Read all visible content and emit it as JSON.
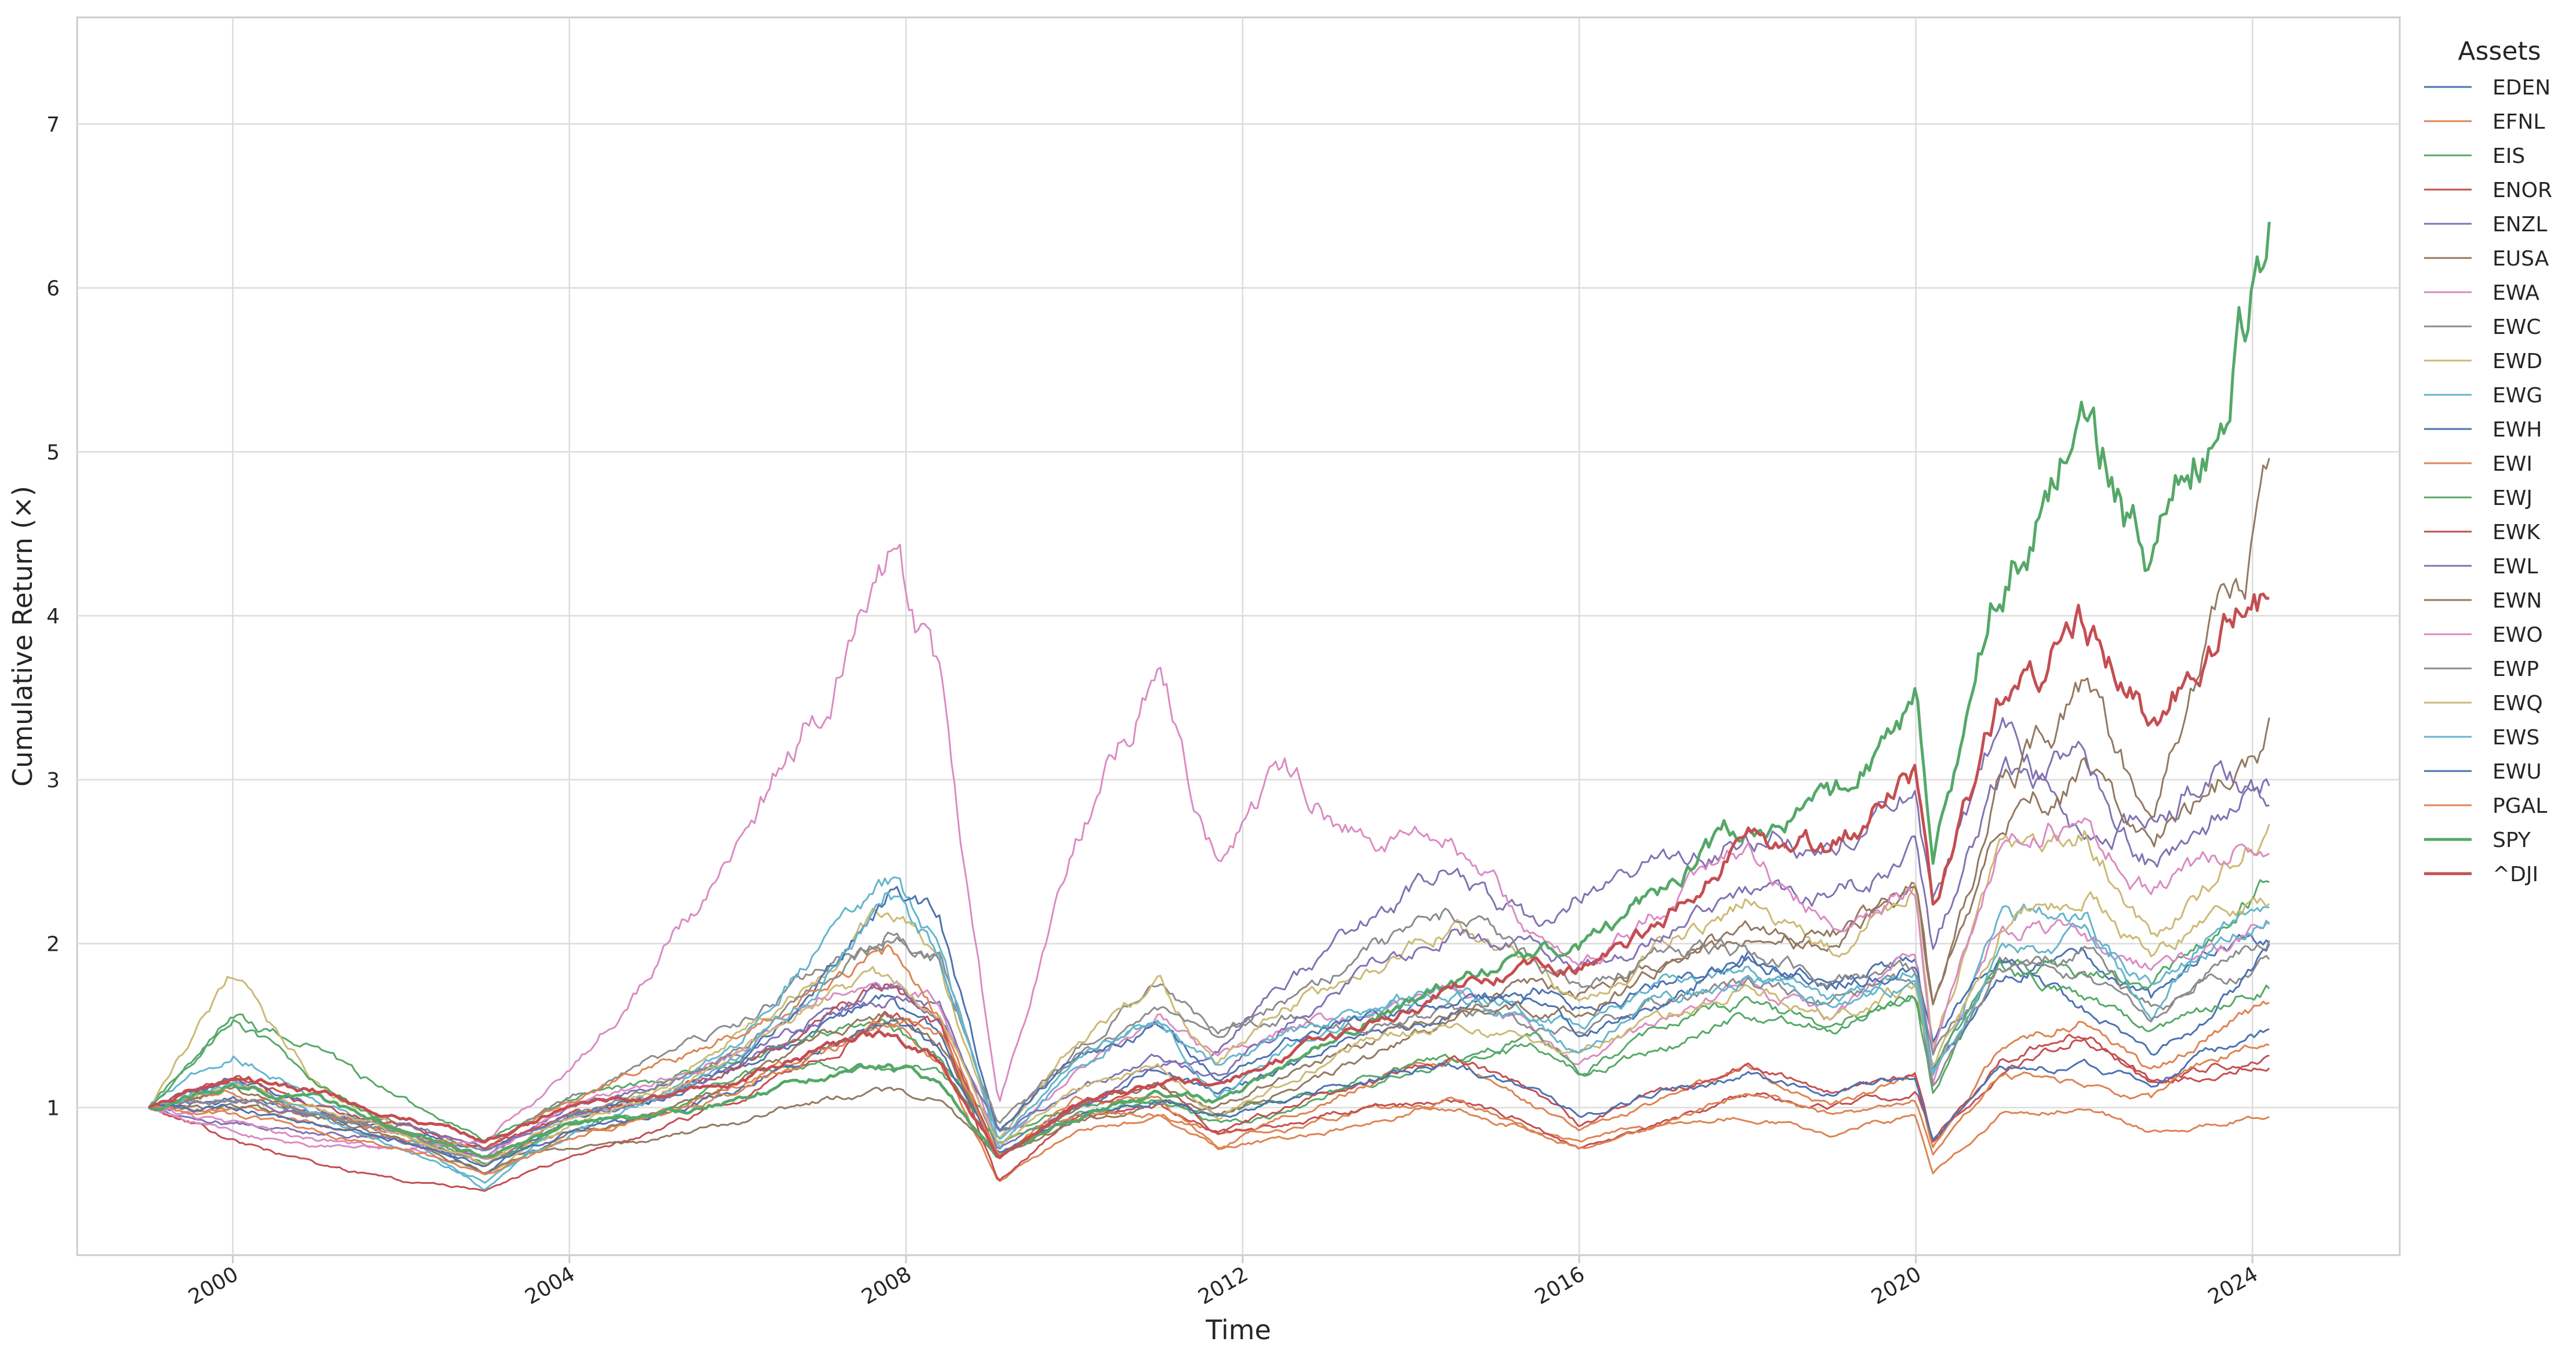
{
  "chart_data": {
    "type": "line",
    "title": "",
    "xlabel": "Time",
    "ylabel": "Cumulative Return (×)",
    "x_ticks": [
      "2000",
      "2004",
      "2008",
      "2012",
      "2016",
      "2020",
      "2024"
    ],
    "y_ticks": [
      "1",
      "2",
      "3",
      "4",
      "5",
      "6",
      "7"
    ],
    "xlim": [
      1998.15,
      2025.75
    ],
    "ylim": [
      0.1,
      7.65
    ],
    "grid": true,
    "legend": {
      "title": "Assets",
      "placement": "right-outside"
    },
    "anchor_years": [
      1999.0,
      2000.0,
      2001.0,
      2002.0,
      2003.0,
      2004.0,
      2005.0,
      2006.0,
      2007.0,
      2007.8,
      2008.4,
      2009.1,
      2010.0,
      2011.0,
      2011.7,
      2012.5,
      2013.5,
      2014.5,
      2015.5,
      2016.0,
      2017.0,
      2018.0,
      2019.0,
      2020.0,
      2020.2,
      2021.0,
      2022.0,
      2022.8,
      2023.5,
      2024.2
    ],
    "series": [
      {
        "name": "EDEN",
        "color": "#4c72b0",
        "width": 3,
        "values": [
          1.0,
          1.05,
          0.95,
          0.85,
          0.75,
          0.95,
          1.05,
          1.25,
          1.5,
          1.65,
          1.45,
          0.7,
          1.0,
          1.25,
          1.1,
          1.25,
          1.45,
          1.55,
          1.75,
          1.6,
          1.75,
          1.9,
          1.75,
          1.95,
          1.25,
          1.75,
          1.95,
          1.65,
          1.95,
          2.05
        ]
      },
      {
        "name": "EFNL",
        "color": "#dd8452",
        "width": 3,
        "values": [
          1.0,
          1.0,
          0.9,
          0.8,
          0.7,
          0.85,
          0.95,
          1.15,
          1.35,
          1.5,
          1.3,
          0.55,
          0.85,
          0.95,
          0.85,
          0.85,
          1.0,
          1.0,
          0.85,
          0.8,
          0.9,
          0.95,
          0.85,
          0.95,
          0.6,
          0.95,
          1.0,
          0.85,
          0.9,
          0.95
        ]
      },
      {
        "name": "EIS",
        "color": "#55a868",
        "width": 3,
        "values": [
          1.0,
          1.55,
          1.35,
          1.05,
          0.8,
          1.05,
          1.15,
          1.3,
          1.45,
          1.5,
          1.3,
          0.85,
          1.0,
          1.05,
          0.95,
          1.05,
          1.15,
          1.3,
          1.35,
          1.2,
          1.35,
          1.55,
          1.5,
          1.7,
          1.1,
          1.9,
          1.8,
          1.75,
          2.05,
          2.4
        ]
      },
      {
        "name": "ENOR",
        "color": "#c44e52",
        "width": 3,
        "values": [
          1.0,
          0.8,
          0.65,
          0.55,
          0.5,
          0.7,
          0.85,
          1.05,
          1.3,
          1.55,
          1.5,
          0.55,
          0.95,
          1.0,
          0.85,
          0.9,
          1.0,
          1.05,
          0.9,
          0.75,
          0.9,
          1.1,
          1.0,
          1.1,
          0.8,
          1.2,
          1.45,
          1.15,
          1.25,
          1.25
        ]
      },
      {
        "name": "ENZL",
        "color": "#8172b3",
        "width": 3,
        "values": [
          1.0,
          0.9,
          0.85,
          0.8,
          0.7,
          1.0,
          1.15,
          1.3,
          1.55,
          1.65,
          1.6,
          0.75,
          1.0,
          1.25,
          1.35,
          1.75,
          2.15,
          2.45,
          2.1,
          2.3,
          2.5,
          2.65,
          2.6,
          2.95,
          2.2,
          3.35,
          2.6,
          2.75,
          3.05,
          2.95
        ]
      },
      {
        "name": "EUSA",
        "color": "#937860",
        "width": 3,
        "values": [
          1.0,
          1.0,
          0.95,
          0.85,
          0.7,
          0.75,
          0.8,
          0.9,
          1.05,
          1.1,
          1.05,
          0.7,
          0.9,
          1.05,
          1.0,
          1.2,
          1.4,
          1.6,
          1.75,
          1.7,
          1.9,
          2.05,
          2.0,
          2.3,
          1.6,
          2.7,
          3.05,
          2.6,
          2.95,
          3.3
        ]
      },
      {
        "name": "EWA",
        "color": "#da8bc3",
        "width": 3,
        "values": [
          1.0,
          0.9,
          0.8,
          0.75,
          0.7,
          1.0,
          1.15,
          1.35,
          1.7,
          1.75,
          1.65,
          0.8,
          1.2,
          1.6,
          1.3,
          1.5,
          1.55,
          1.75,
          1.45,
          1.25,
          1.55,
          1.75,
          1.55,
          1.95,
          1.15,
          2.15,
          2.05,
          1.85,
          1.95,
          2.1
        ]
      },
      {
        "name": "EWC",
        "color": "#8c8c8c",
        "width": 3,
        "values": [
          1.0,
          1.15,
          0.95,
          0.9,
          0.75,
          1.05,
          1.3,
          1.5,
          1.85,
          2.05,
          1.9,
          0.85,
          1.35,
          1.75,
          1.45,
          1.55,
          1.5,
          1.6,
          1.5,
          1.45,
          1.65,
          1.75,
          1.65,
          1.8,
          1.15,
          1.85,
          1.95,
          1.6,
          1.75,
          1.9
        ]
      },
      {
        "name": "EWD",
        "color": "#ccb974",
        "width": 3,
        "values": [
          1.0,
          1.8,
          1.15,
          0.85,
          0.6,
          0.9,
          1.1,
          1.45,
          1.8,
          2.25,
          1.85,
          0.8,
          1.4,
          1.75,
          1.25,
          1.6,
          1.85,
          2.1,
          1.85,
          1.6,
          2.0,
          2.3,
          1.95,
          2.35,
          1.4,
          2.55,
          2.7,
          2.05,
          2.35,
          2.75
        ]
      },
      {
        "name": "EWG",
        "color": "#64b5cd",
        "width": 3,
        "values": [
          1.0,
          1.35,
          1.05,
          0.85,
          0.5,
          0.95,
          1.05,
          1.4,
          2.0,
          2.35,
          2.0,
          0.75,
          1.25,
          1.55,
          1.05,
          1.35,
          1.6,
          1.75,
          1.55,
          1.5,
          1.75,
          1.85,
          1.6,
          1.85,
          1.2,
          2.2,
          2.15,
          1.6,
          2.05,
          2.25
        ]
      },
      {
        "name": "EWH",
        "color": "#4c72b0",
        "width": 3,
        "values": [
          1.0,
          1.2,
          1.0,
          0.85,
          0.6,
          0.95,
          1.05,
          1.25,
          1.75,
          2.3,
          2.15,
          0.85,
          1.3,
          1.5,
          1.2,
          1.4,
          1.55,
          1.65,
          1.65,
          1.45,
          1.65,
          1.95,
          1.75,
          1.85,
          1.4,
          1.95,
          1.6,
          1.35,
          1.55,
          1.95
        ]
      },
      {
        "name": "EWI",
        "color": "#dd8452",
        "width": 3,
        "values": [
          1.0,
          1.1,
          0.95,
          0.85,
          0.75,
          1.05,
          1.25,
          1.45,
          1.75,
          1.95,
          1.55,
          0.7,
          1.05,
          1.05,
          0.75,
          0.95,
          1.15,
          1.3,
          1.0,
          0.85,
          1.05,
          1.25,
          1.0,
          1.2,
          0.75,
          1.35,
          1.55,
          1.2,
          1.45,
          1.65
        ]
      },
      {
        "name": "EWJ",
        "color": "#55a868",
        "width": 3,
        "values": [
          1.0,
          1.55,
          1.15,
          0.85,
          0.65,
          0.9,
          0.95,
          1.2,
          1.25,
          1.25,
          1.2,
          0.8,
          0.95,
          1.05,
          0.9,
          0.95,
          1.2,
          1.3,
          1.45,
          1.2,
          1.5,
          1.65,
          1.45,
          1.7,
          1.25,
          1.85,
          1.65,
          1.45,
          1.6,
          1.75
        ]
      },
      {
        "name": "EWK",
        "color": "#c44e52",
        "width": 3,
        "values": [
          1.0,
          1.2,
          1.0,
          0.9,
          0.75,
          0.95,
          1.05,
          1.25,
          1.5,
          1.75,
          1.5,
          0.7,
          1.0,
          1.15,
          0.85,
          1.0,
          1.15,
          1.3,
          1.1,
          0.9,
          1.1,
          1.25,
          1.1,
          1.2,
          0.8,
          1.3,
          1.45,
          1.15,
          1.2,
          1.3
        ]
      },
      {
        "name": "EWL",
        "color": "#8172b3",
        "width": 3,
        "values": [
          1.0,
          1.05,
          0.95,
          0.9,
          0.75,
          0.95,
          1.05,
          1.25,
          1.55,
          1.75,
          1.55,
          0.85,
          1.1,
          1.3,
          1.2,
          1.5,
          1.85,
          2.05,
          2.0,
          1.85,
          2.05,
          2.35,
          2.25,
          2.55,
          1.95,
          3.05,
          3.1,
          2.5,
          2.75,
          2.95
        ]
      },
      {
        "name": "EWN",
        "color": "#937860",
        "width": 3,
        "values": [
          1.0,
          1.1,
          0.95,
          0.8,
          0.6,
          0.85,
          0.95,
          1.15,
          1.45,
          1.55,
          1.4,
          0.7,
          1.0,
          1.15,
          0.95,
          1.1,
          1.3,
          1.55,
          1.6,
          1.55,
          1.85,
          2.05,
          2.05,
          2.35,
          1.6,
          2.95,
          3.5,
          2.75,
          3.85,
          4.65
        ]
      },
      {
        "name": "EWO",
        "color": "#da8bc3",
        "width": 3,
        "values": [
          1.0,
          0.85,
          0.75,
          0.75,
          0.8,
          1.2,
          1.85,
          2.6,
          3.5,
          4.3,
          3.6,
          1.0,
          2.65,
          3.65,
          2.5,
          3.05,
          2.6,
          2.6,
          2.05,
          1.8,
          2.2,
          2.6,
          2.1,
          2.35,
          1.35,
          2.6,
          2.8,
          2.3,
          2.5,
          2.65
        ]
      },
      {
        "name": "EWP",
        "color": "#8c8c8c",
        "width": 3,
        "values": [
          1.0,
          1.05,
          0.95,
          0.85,
          0.65,
          0.95,
          1.1,
          1.35,
          1.75,
          2.05,
          1.9,
          0.9,
          1.3,
          1.55,
          1.45,
          1.65,
          1.95,
          2.2,
          1.85,
          1.75,
          1.95,
          1.95,
          1.8,
          1.85,
          1.35,
          1.9,
          1.8,
          1.55,
          1.85,
          2.05
        ]
      },
      {
        "name": "EWQ",
        "color": "#ccb974",
        "width": 3,
        "values": [
          1.0,
          1.15,
          1.0,
          0.85,
          0.65,
          0.95,
          1.05,
          1.3,
          1.65,
          1.8,
          1.55,
          0.8,
          1.1,
          1.25,
          0.95,
          1.15,
          1.4,
          1.5,
          1.4,
          1.35,
          1.55,
          1.75,
          1.55,
          1.75,
          1.25,
          2.1,
          2.35,
          1.9,
          2.2,
          2.3
        ]
      },
      {
        "name": "EWS",
        "color": "#64b5cd",
        "width": 3,
        "values": [
          1.0,
          1.15,
          0.95,
          0.75,
          0.55,
          0.85,
          1.05,
          1.3,
          1.75,
          2.3,
          1.95,
          0.8,
          1.3,
          1.55,
          1.25,
          1.45,
          1.6,
          1.7,
          1.5,
          1.35,
          1.65,
          1.8,
          1.65,
          1.75,
          1.2,
          1.95,
          2.05,
          1.75,
          1.95,
          2.15
        ]
      },
      {
        "name": "EWU",
        "color": "#4c72b0",
        "width": 3,
        "values": [
          1.0,
          1.0,
          0.9,
          0.8,
          0.65,
          0.85,
          0.95,
          1.1,
          1.35,
          1.55,
          1.35,
          0.7,
          0.95,
          1.05,
          0.95,
          1.05,
          1.2,
          1.25,
          1.1,
          0.95,
          1.1,
          1.2,
          1.1,
          1.2,
          0.8,
          1.25,
          1.25,
          1.15,
          1.35,
          1.45
        ]
      },
      {
        "name": "PGAL",
        "color": "#dd8452",
        "width": 3,
        "values": [
          1.0,
          0.95,
          0.85,
          0.75,
          0.6,
          0.8,
          0.95,
          1.1,
          1.35,
          1.55,
          1.45,
          0.7,
          0.95,
          0.95,
          0.75,
          0.8,
          0.9,
          1.05,
          0.85,
          0.75,
          0.9,
          1.1,
          0.95,
          1.05,
          0.7,
          1.2,
          1.15,
          1.05,
          1.3,
          1.4
        ]
      },
      {
        "name": "SPY",
        "color": "#55a868",
        "width": 5,
        "values": [
          1.0,
          1.15,
          1.05,
          0.85,
          0.7,
          0.9,
          0.95,
          1.05,
          1.2,
          1.25,
          1.15,
          0.7,
          0.95,
          1.1,
          1.05,
          1.25,
          1.55,
          1.75,
          1.95,
          2.0,
          2.35,
          2.75,
          2.85,
          3.45,
          2.45,
          4.25,
          5.35,
          4.25,
          5.25,
          6.35
        ]
      },
      {
        "name": "^DJI",
        "color": "#c44e52",
        "width": 5,
        "values": [
          1.0,
          1.2,
          1.1,
          0.95,
          0.8,
          1.0,
          1.05,
          1.15,
          1.35,
          1.45,
          1.3,
          0.7,
          1.0,
          1.15,
          1.15,
          1.3,
          1.5,
          1.75,
          1.85,
          1.85,
          2.15,
          2.65,
          2.6,
          3.0,
          2.2,
          3.45,
          3.95,
          3.3,
          3.75,
          4.15
        ]
      }
    ]
  }
}
